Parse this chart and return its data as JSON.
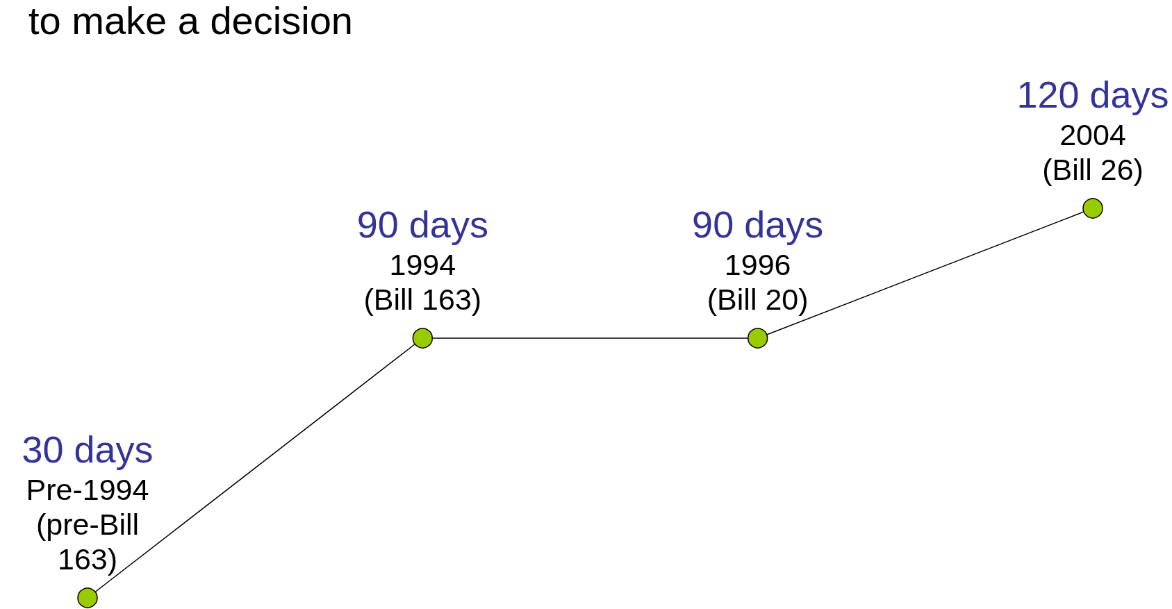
{
  "chart_data": {
    "type": "line",
    "title": "to make a decision",
    "categories": [
      "Pre-1994\n(pre-Bill\n163)",
      "1994\n(Bill 163)",
      "1996\n(Bill 20)",
      "2004\n(Bill 26)"
    ],
    "values": [
      30,
      90,
      90,
      120
    ],
    "value_labels": [
      "30 days",
      "90 days",
      "90 days",
      "120 days"
    ],
    "color": "#000000",
    "colors": [
      "#99cc00",
      "#99cc00",
      "#99cc00",
      "#99cc00"
    ],
    "marker": "circle",
    "line_style": "solid"
  }
}
